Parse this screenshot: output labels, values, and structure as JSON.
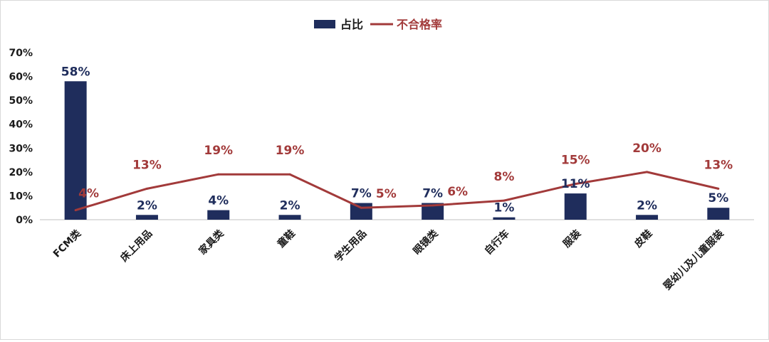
{
  "chart_data": {
    "type": "bar+line",
    "title": "",
    "xlabel": "",
    "ylabel": "",
    "ylim": [
      0,
      70
    ],
    "y_ticks": [
      "0%",
      "10%",
      "20%",
      "30%",
      "40%",
      "50%",
      "60%",
      "70%"
    ],
    "y_tick_values": [
      0,
      10,
      20,
      30,
      40,
      50,
      60,
      70
    ],
    "grid": false,
    "legend_position": "top-center",
    "categories": [
      "FCM类",
      "床上用品",
      "家具类",
      "童鞋",
      "学生用品",
      "眼镜类",
      "自行车",
      "服装",
      "皮鞋",
      "婴幼儿及儿童服装"
    ],
    "series": [
      {
        "name": "占比",
        "kind": "bar",
        "color": "#1f2d5c",
        "values": [
          58,
          2,
          4,
          2,
          7,
          7,
          1,
          11,
          2,
          5
        ],
        "labels": [
          "58%",
          "2%",
          "4%",
          "2%",
          "7%",
          "7%",
          "1%",
          "11%",
          "2%",
          "5%"
        ]
      },
      {
        "name": "不合格率",
        "kind": "line",
        "color": "#a23a3a",
        "values": [
          4,
          13,
          19,
          19,
          5,
          6,
          8,
          15,
          20,
          13
        ],
        "labels": [
          "4%",
          "13%",
          "19%",
          "19%",
          "5%",
          "6%",
          "8%",
          "15%",
          "20%",
          "13%"
        ]
      }
    ]
  }
}
